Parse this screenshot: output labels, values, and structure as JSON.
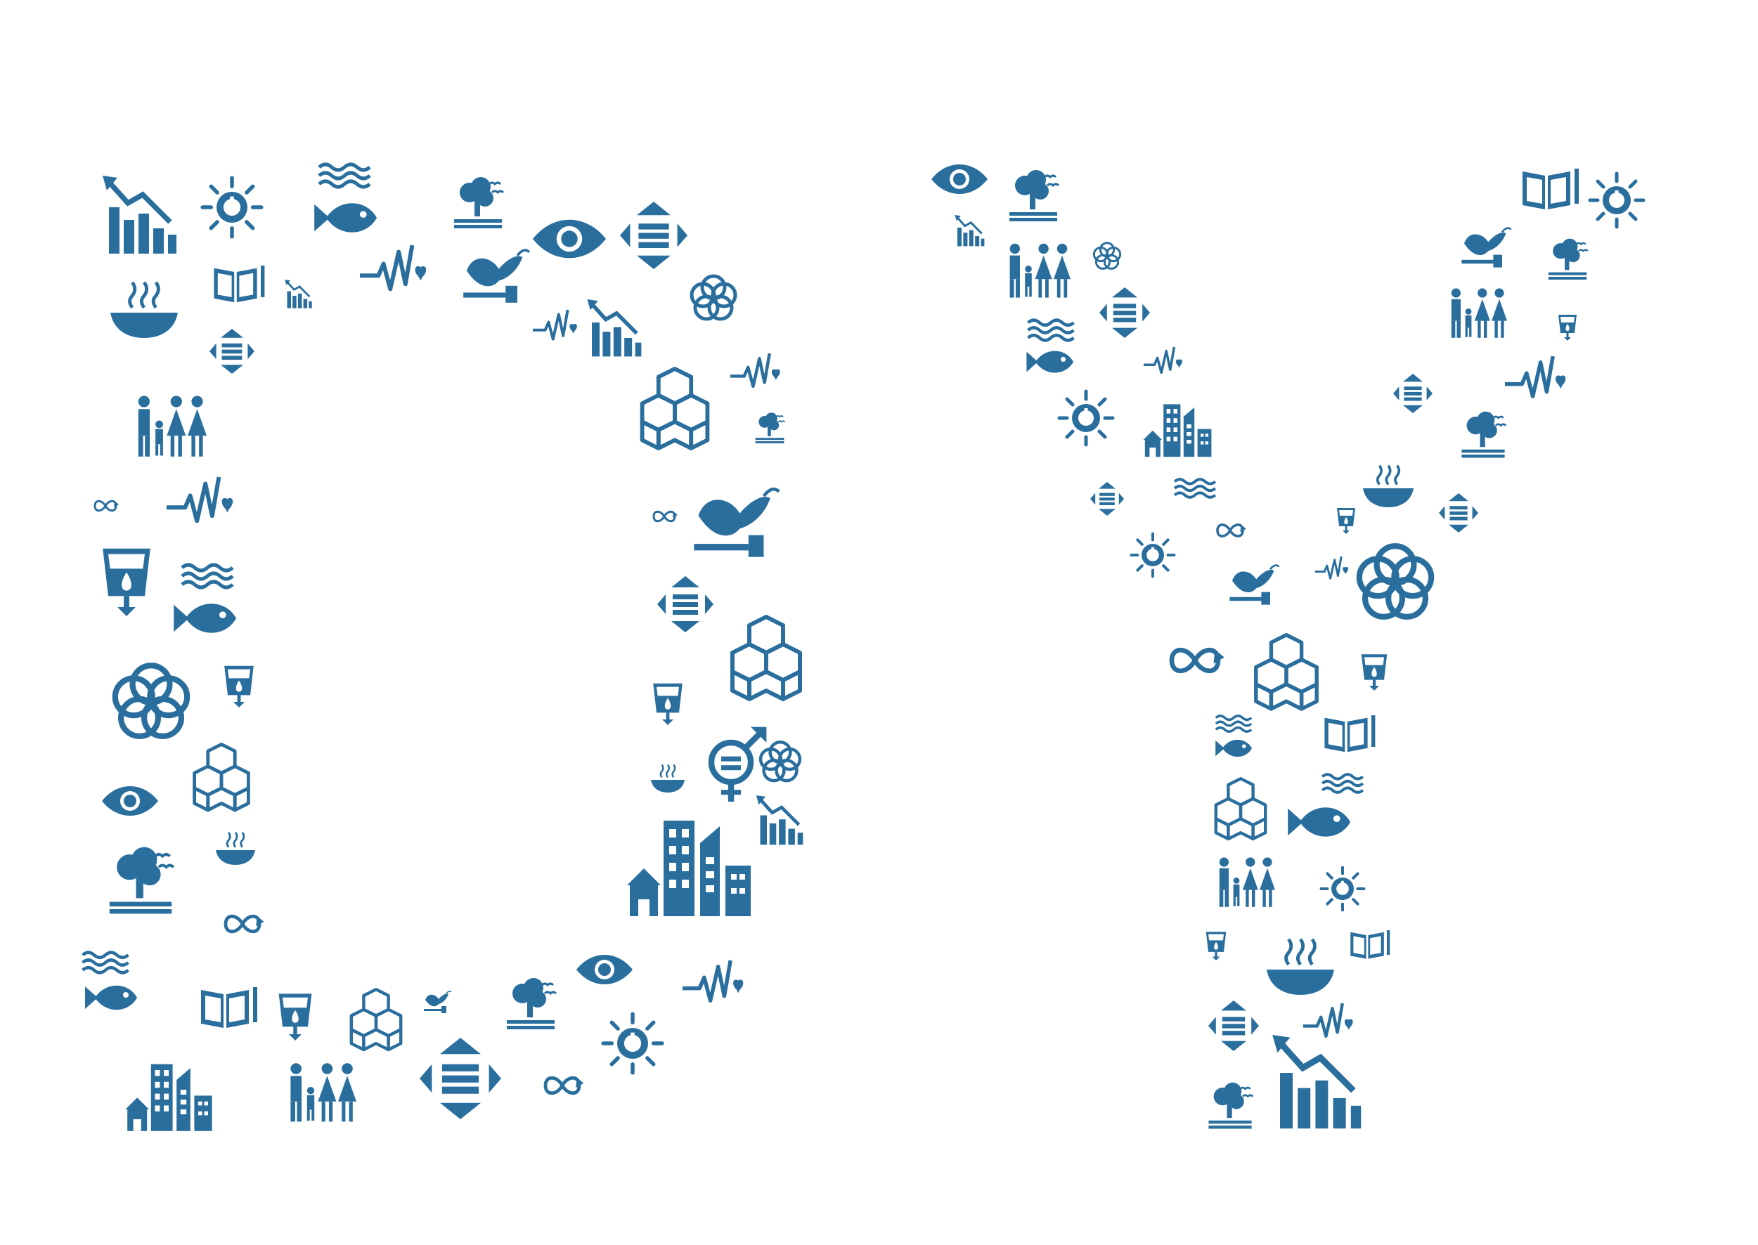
{
  "artwork": {
    "letters": [
      "D",
      "Y"
    ],
    "color": "#2a6e9e",
    "background": "#ffffff",
    "icon_names": [
      "declining-chart-icon",
      "sun-power-icon",
      "waves-icon",
      "fish-icon",
      "tree-icon",
      "globe-eye-icon",
      "equality-diamond-icon",
      "open-book-icon",
      "heartbeat-icon",
      "peace-dove-icon",
      "flower-rings-icon",
      "soup-bowl-icon",
      "family-icon",
      "infinity-arrow-icon",
      "water-cup-icon",
      "cubes-icon",
      "gender-equality-icon",
      "city-buildings-icon"
    ]
  }
}
